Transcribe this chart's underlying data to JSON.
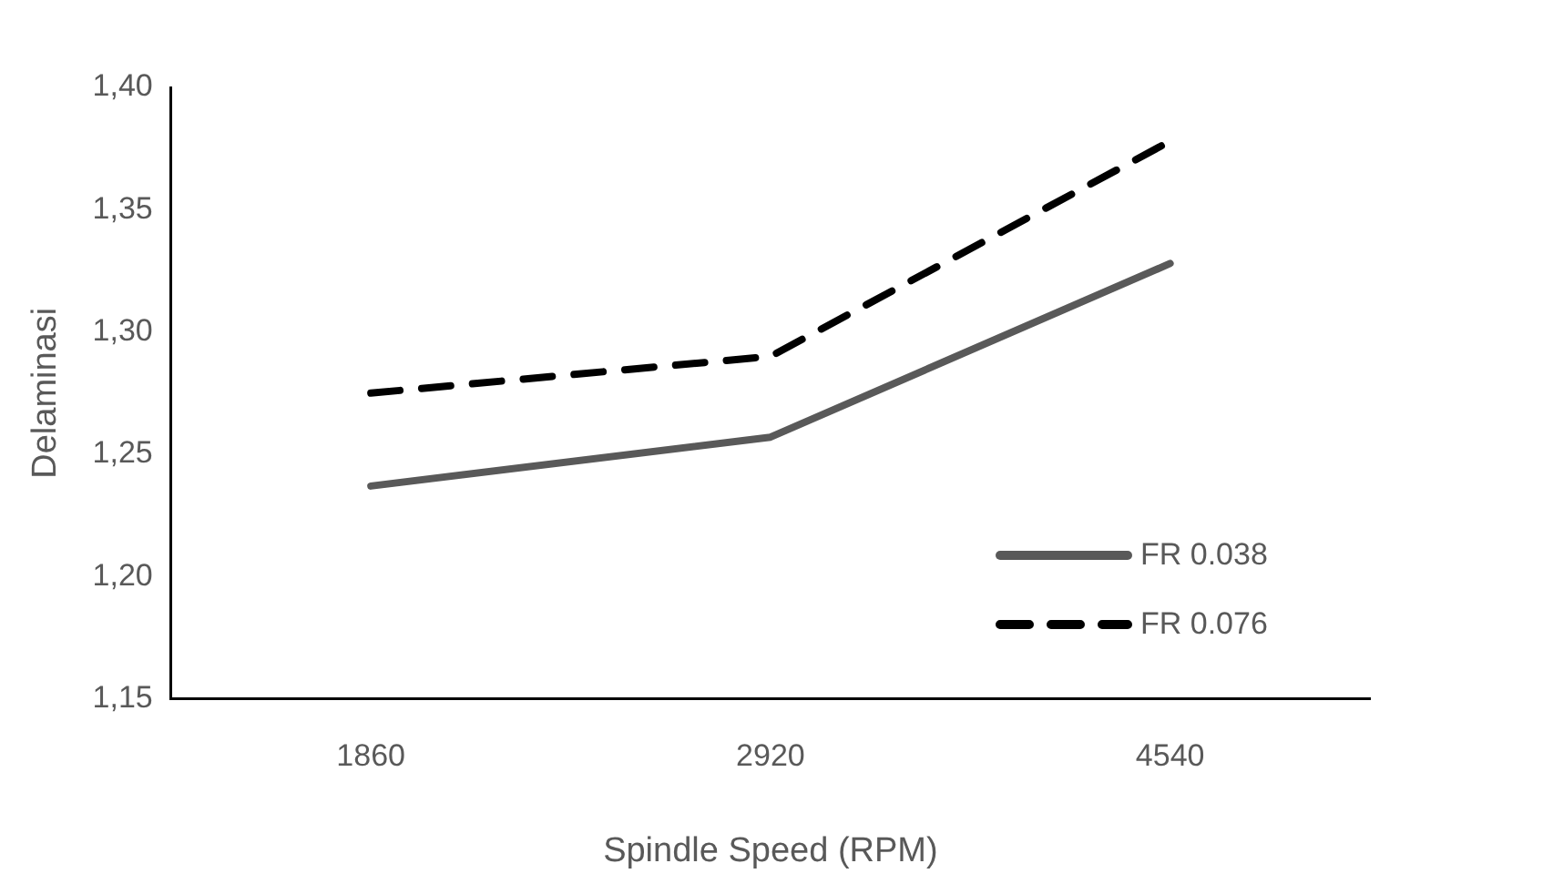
{
  "chart_data": {
    "type": "line",
    "xlabel": "Spindle Speed (RPM)",
    "ylabel": "Delaminasi",
    "categories": [
      "1860",
      "2920",
      "4540"
    ],
    "series": [
      {
        "name": "FR 0.038",
        "color": "#595959",
        "line_style": "solid",
        "values": [
          1.237,
          1.257,
          1.328
        ]
      },
      {
        "name": "FR 0.076",
        "color": "#000000",
        "line_style": "dashed",
        "values": [
          1.275,
          1.29,
          1.378
        ]
      }
    ],
    "ylim": [
      1.15,
      1.4
    ],
    "yticks": [
      {
        "value": 1.15,
        "label": "1,15"
      },
      {
        "value": 1.2,
        "label": "1,20"
      },
      {
        "value": 1.25,
        "label": "1,25"
      },
      {
        "value": 1.3,
        "label": "1,30"
      },
      {
        "value": 1.35,
        "label": "1,35"
      },
      {
        "value": 1.4,
        "label": "1,40"
      }
    ],
    "grid": false,
    "legend": "right",
    "marker": "none"
  }
}
